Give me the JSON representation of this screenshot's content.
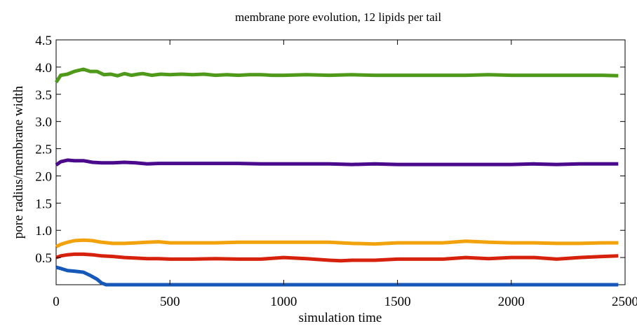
{
  "chart_data": {
    "type": "line",
    "title": "membrane pore evolution, 12 lipids per tail",
    "xlabel": "simulation time",
    "ylabel": "pore radius/membrane width",
    "xlim": [
      0,
      2500
    ],
    "ylim": [
      0,
      4.5
    ],
    "xticks": [
      0,
      500,
      1000,
      1500,
      2000,
      2500
    ],
    "xtick_labels": [
      "0",
      "500",
      "1000",
      "1500",
      "2000",
      "2500"
    ],
    "yticks": [
      0.5,
      1.0,
      1.5,
      2.0,
      2.5,
      3.0,
      3.5,
      4.0,
      4.5
    ],
    "ytick_labels": [
      "0.5",
      "1.0",
      "1.5",
      "2.0",
      "2.5",
      "3.0",
      "3.5",
      "4.0",
      "4.5"
    ],
    "grid": false,
    "legend": "none",
    "series": [
      {
        "color": "#4f9a1a",
        "x": [
          0,
          20,
          50,
          80,
          120,
          150,
          180,
          210,
          240,
          270,
          300,
          330,
          360,
          380,
          420,
          460,
          500,
          550,
          600,
          650,
          700,
          750,
          800,
          850,
          900,
          950,
          1000,
          1100,
          1200,
          1300,
          1400,
          1500,
          1600,
          1700,
          1800,
          1900,
          2000,
          2100,
          2200,
          2300,
          2400,
          2470
        ],
        "y": [
          3.72,
          3.85,
          3.87,
          3.92,
          3.96,
          3.92,
          3.92,
          3.86,
          3.87,
          3.84,
          3.88,
          3.85,
          3.87,
          3.88,
          3.85,
          3.87,
          3.86,
          3.87,
          3.86,
          3.87,
          3.85,
          3.86,
          3.85,
          3.86,
          3.86,
          3.85,
          3.85,
          3.86,
          3.85,
          3.86,
          3.85,
          3.85,
          3.85,
          3.85,
          3.85,
          3.86,
          3.85,
          3.85,
          3.85,
          3.85,
          3.85,
          3.84
        ]
      },
      {
        "color": "#4b0a8c",
        "x": [
          0,
          20,
          50,
          80,
          120,
          160,
          200,
          250,
          300,
          350,
          400,
          450,
          500,
          600,
          700,
          800,
          900,
          1000,
          1100,
          1200,
          1300,
          1400,
          1500,
          1600,
          1700,
          1800,
          1900,
          2000,
          2100,
          2200,
          2300,
          2400,
          2470
        ],
        "y": [
          2.2,
          2.26,
          2.29,
          2.28,
          2.28,
          2.25,
          2.24,
          2.24,
          2.25,
          2.24,
          2.22,
          2.23,
          2.23,
          2.23,
          2.23,
          2.23,
          2.22,
          2.22,
          2.22,
          2.22,
          2.21,
          2.22,
          2.21,
          2.21,
          2.21,
          2.21,
          2.21,
          2.21,
          2.22,
          2.21,
          2.22,
          2.22,
          2.22
        ]
      },
      {
        "color": "#f2a20d",
        "x": [
          0,
          20,
          50,
          80,
          120,
          160,
          200,
          250,
          300,
          350,
          400,
          450,
          500,
          600,
          700,
          800,
          900,
          1000,
          1100,
          1200,
          1300,
          1400,
          1500,
          1600,
          1700,
          1800,
          1900,
          2000,
          2100,
          2200,
          2300,
          2400,
          2470
        ],
        "y": [
          0.7,
          0.74,
          0.78,
          0.81,
          0.82,
          0.81,
          0.78,
          0.76,
          0.76,
          0.77,
          0.78,
          0.79,
          0.77,
          0.77,
          0.77,
          0.78,
          0.78,
          0.78,
          0.78,
          0.78,
          0.76,
          0.75,
          0.77,
          0.77,
          0.77,
          0.8,
          0.78,
          0.77,
          0.77,
          0.76,
          0.76,
          0.77,
          0.77
        ]
      },
      {
        "color": "#d6210c",
        "x": [
          0,
          20,
          50,
          80,
          120,
          160,
          200,
          250,
          300,
          350,
          400,
          450,
          500,
          600,
          700,
          800,
          900,
          1000,
          1100,
          1200,
          1250,
          1300,
          1400,
          1500,
          1600,
          1700,
          1800,
          1900,
          2000,
          2100,
          2200,
          2300,
          2400,
          2470
        ],
        "y": [
          0.5,
          0.53,
          0.55,
          0.56,
          0.56,
          0.55,
          0.53,
          0.52,
          0.5,
          0.49,
          0.48,
          0.48,
          0.47,
          0.47,
          0.48,
          0.47,
          0.47,
          0.5,
          0.48,
          0.45,
          0.44,
          0.45,
          0.45,
          0.47,
          0.47,
          0.47,
          0.5,
          0.48,
          0.5,
          0.5,
          0.47,
          0.5,
          0.52,
          0.53
        ]
      },
      {
        "color": "#1558b8",
        "x": [
          0,
          20,
          50,
          80,
          120,
          150,
          180,
          200,
          220,
          300,
          500,
          1000,
          1500,
          2000,
          2470
        ],
        "y": [
          0.32,
          0.3,
          0.26,
          0.25,
          0.23,
          0.17,
          0.1,
          0.03,
          0.0,
          0.0,
          0.0,
          0.0,
          0.0,
          0.0,
          0.0
        ]
      }
    ]
  }
}
